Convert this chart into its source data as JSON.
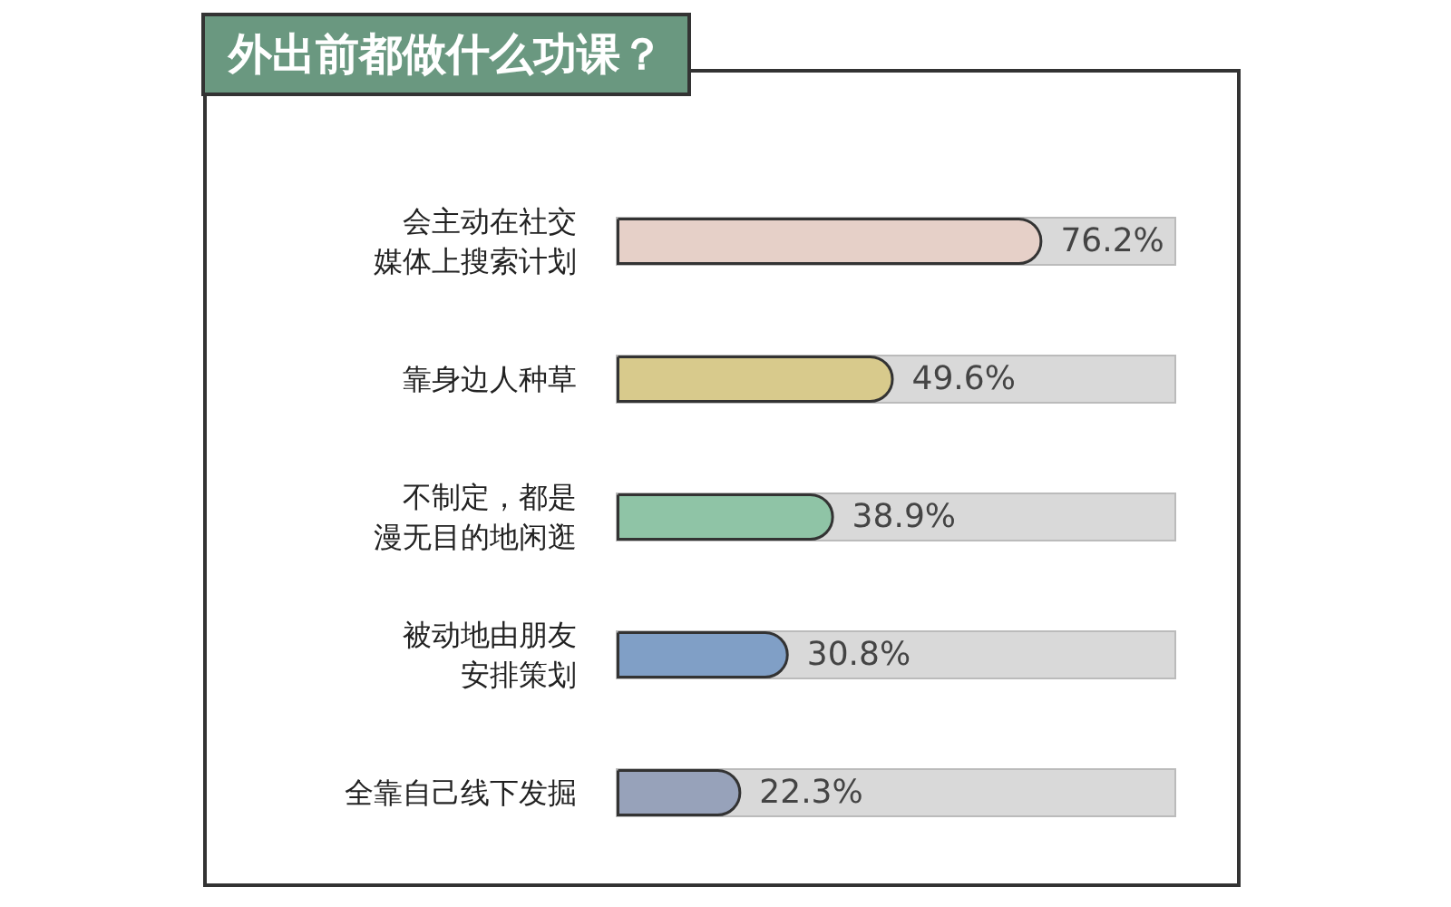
{
  "chart_data": {
    "type": "bar",
    "orientation": "horizontal",
    "title": "外出前都做什么功课？",
    "categories": [
      "会主动在社交媒体上搜索计划",
      "靠身边人种草",
      "不制定，都是漫无目的地闲逛",
      "被动地由朋友安排策划",
      "全靠自己线下发掘"
    ],
    "values": [
      76.2,
      49.6,
      38.9,
      30.8,
      22.3
    ],
    "colors": [
      "#e6d0c8",
      "#d8ca8c",
      "#8fc4a6",
      "#809fc6",
      "#97a2ba"
    ],
    "value_labels": [
      "76.2%",
      "49.6%",
      "38.9%",
      "30.8%",
      "22.3%"
    ],
    "xlim": [
      0,
      100
    ],
    "tick_labels": "y",
    "grid": false
  }
}
